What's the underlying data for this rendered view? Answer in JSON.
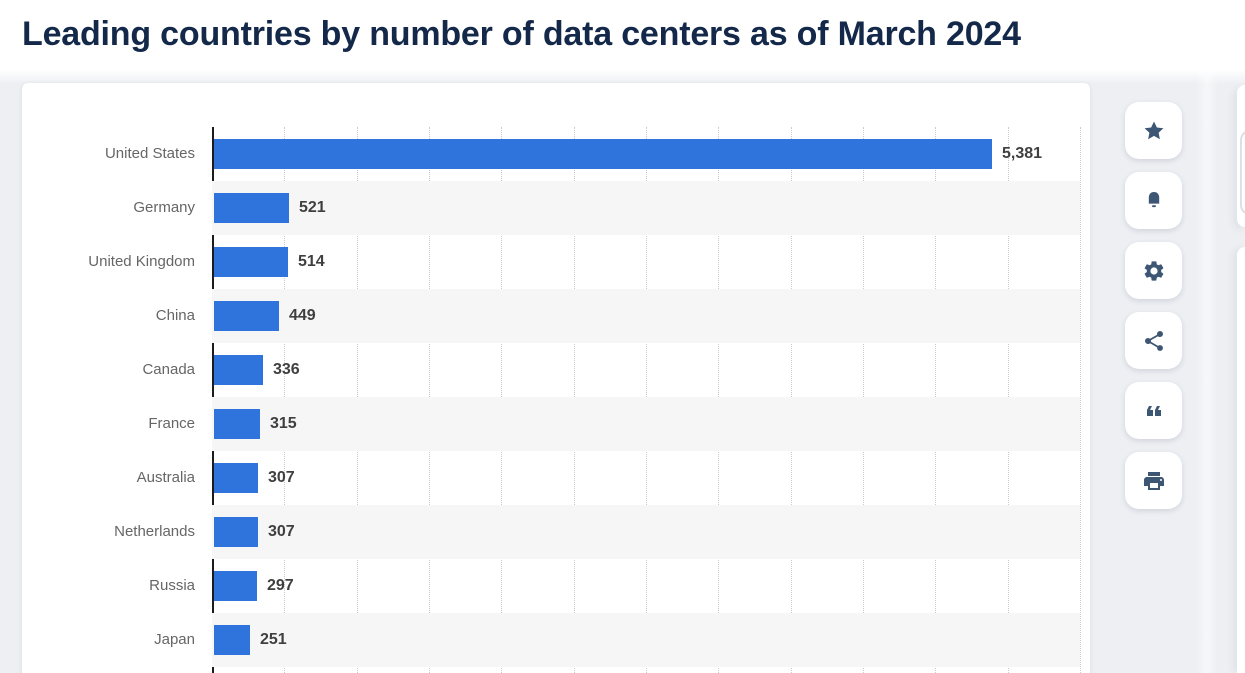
{
  "header": {
    "title": "Leading countries by number of data centers as of March 2024"
  },
  "chart_data": {
    "type": "bar",
    "orientation": "horizontal",
    "title": "Leading countries by number of data centers as of March 2024",
    "categories": [
      "United States",
      "Germany",
      "United Kingdom",
      "China",
      "Canada",
      "France",
      "Australia",
      "Netherlands",
      "Russia",
      "Japan"
    ],
    "values": [
      5381,
      521,
      514,
      449,
      336,
      315,
      307,
      307,
      297,
      251
    ],
    "value_labels": [
      "5,381",
      "521",
      "514",
      "449",
      "336",
      "315",
      "307",
      "307",
      "297",
      "251"
    ],
    "xlabel": "",
    "ylabel": "",
    "xlim": [
      0,
      6000
    ],
    "gridline_step": 500,
    "grid": true,
    "legend": "none",
    "bar_color": "#2f74dc",
    "stripe_color": "#f6f6f6",
    "category_label_color": "#666666",
    "value_label_color": "#3f3f3f",
    "axis_color": "#1c1c1c",
    "gridline_color": "#c9c9c9"
  },
  "toolbar": {
    "buttons": [
      {
        "name": "favorite",
        "icon": "star-icon"
      },
      {
        "name": "notifications",
        "icon": "bell-icon"
      },
      {
        "name": "settings",
        "icon": "gear-icon"
      },
      {
        "name": "share",
        "icon": "share-icon"
      },
      {
        "name": "cite",
        "icon": "quote-icon"
      },
      {
        "name": "print",
        "icon": "printer-icon"
      }
    ]
  },
  "theme": {
    "title_color": "#14294a",
    "page_background": "#edeff3",
    "card_background": "#ffffff",
    "icon_color": "#3d5674"
  }
}
